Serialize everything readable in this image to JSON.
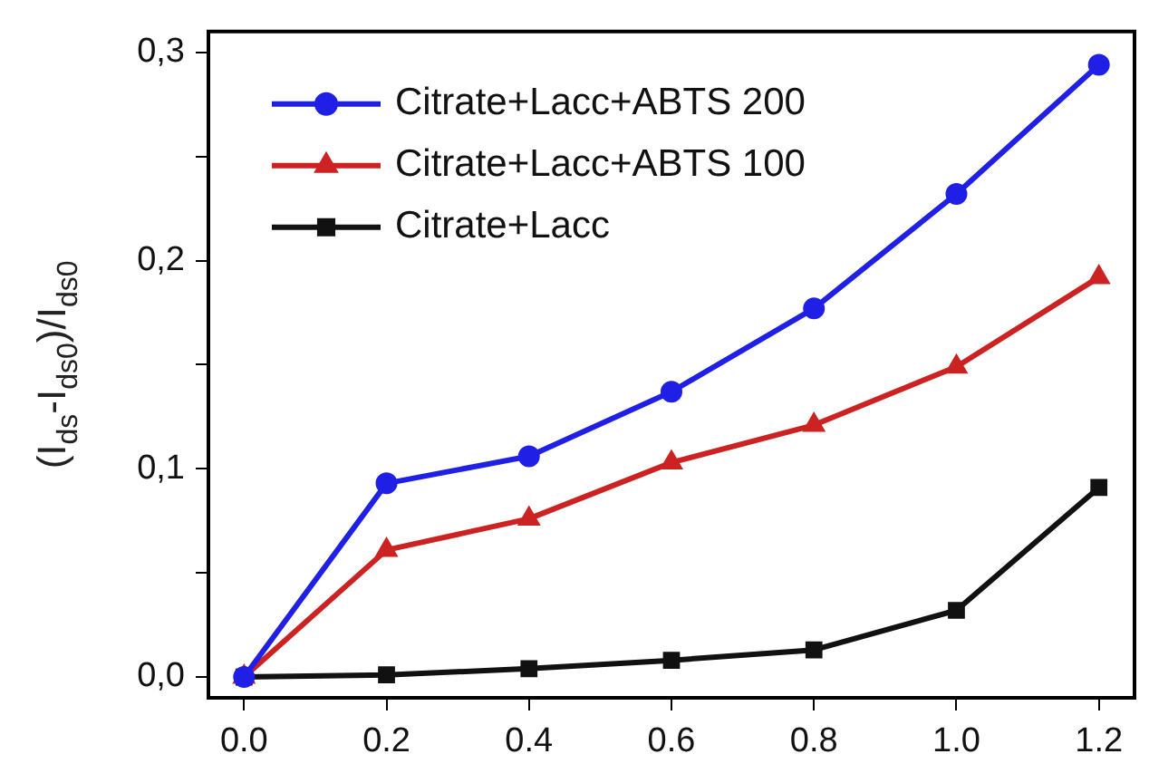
{
  "chart_data": {
    "type": "line",
    "ylabel": "(I$_{ds}$-I$_{ds0}$)/I$_{ds0}$",
    "x": [
      0,
      0.2,
      0.4,
      0.6,
      0.8,
      1.0,
      1.2
    ],
    "xlim": [
      -0.05,
      1.25
    ],
    "xticks": [
      {
        "value": 0,
        "label": "0.0"
      },
      {
        "value": 0.2,
        "label": "0.2"
      },
      {
        "value": 0.4,
        "label": "0.4"
      },
      {
        "value": 0.6,
        "label": "0.6"
      },
      {
        "value": 0.8,
        "label": "0.8"
      },
      {
        "value": 1.0,
        "label": "1.0"
      },
      {
        "value": 1.2,
        "label": "1.2"
      }
    ],
    "ylim": [
      -0.01,
      0.31
    ],
    "yticks": [
      {
        "value": 0,
        "label": "0,0"
      },
      {
        "value": 0.05,
        "label": null
      },
      {
        "value": 0.1,
        "label": "0,1"
      },
      {
        "value": 0.15,
        "label": null
      },
      {
        "value": 0.2,
        "label": "0,2"
      },
      {
        "value": 0.25,
        "label": null
      },
      {
        "value": 0.3,
        "label": "0,3"
      }
    ],
    "grid": false,
    "legend": "top left",
    "line_style": "solid",
    "series": [
      {
        "name": "Citrate+Lacc+ABTS 200",
        "color": "#1f1fe6",
        "marker": "circle",
        "values": [
          0,
          0.093,
          0.106,
          0.137,
          0.177,
          0.232,
          0.294
        ]
      },
      {
        "name": "Citrate+Lacc+ABTS 100",
        "color": "#cc2222",
        "marker": "triangle",
        "values": [
          0,
          0.061,
          0.076,
          0.103,
          0.121,
          0.149,
          0.192
        ]
      },
      {
        "name": "Citrate+Lacc",
        "color": "#111111",
        "marker": "square",
        "values": [
          0,
          0.001,
          0.004,
          0.008,
          0.013,
          0.032,
          0.091
        ]
      }
    ]
  }
}
